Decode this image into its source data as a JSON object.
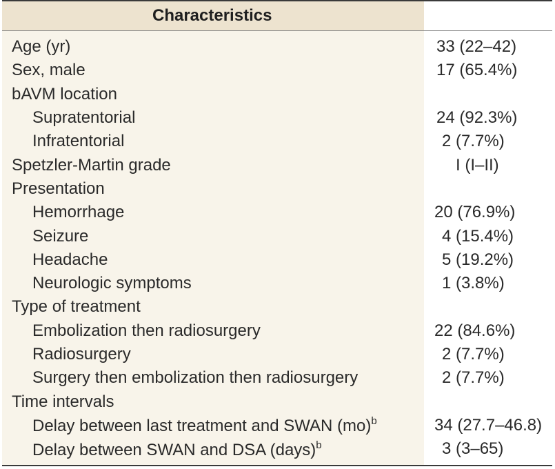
{
  "table": {
    "header": {
      "characteristics": "Characteristics",
      "value": ""
    },
    "rows": [
      {
        "label": "Age (yr)",
        "value": "33 (22–42)",
        "indent": false
      },
      {
        "label": "Sex, male",
        "value": "17 (65.4%)",
        "indent": false
      },
      {
        "label": "bAVM location",
        "value": "",
        "indent": false
      },
      {
        "label": "Supratentorial",
        "value": "24 (92.3%)",
        "indent": true
      },
      {
        "label": "Infratentorial",
        "value": "2 (7.7%)",
        "indent": true
      },
      {
        "label": "Spetzler-Martin grade",
        "value": "I (I–II)",
        "indent": false
      },
      {
        "label": "Presentation",
        "value": "",
        "indent": false
      },
      {
        "label": "Hemorrhage",
        "value": "20 (76.9%)",
        "indent": true
      },
      {
        "label": "Seizure",
        "value": "4 (15.4%)",
        "indent": true
      },
      {
        "label": "Headache",
        "value": "5 (19.2%)",
        "indent": true
      },
      {
        "label": "Neurologic symptoms",
        "value": "1 (3.8%)",
        "indent": true
      },
      {
        "label": "Type of treatment",
        "value": "",
        "indent": false
      },
      {
        "label": "Embolization then radiosurgery",
        "value": "22 (84.6%)",
        "indent": true
      },
      {
        "label": "Radiosurgery",
        "value": "2 (7.7%)",
        "indent": true
      },
      {
        "label": "Surgery then embolization then radiosurgery",
        "value": "2 (7.7%)",
        "indent": true
      },
      {
        "label": "Time intervals",
        "value": "",
        "indent": false
      },
      {
        "label": "Delay between last treatment and SWAN (mo)",
        "superscript": "b",
        "value": "34 (27.7–46.8)",
        "indent": true
      },
      {
        "label": "Delay between SWAN and DSA (days)",
        "superscript": "b",
        "value": "3 (3–65)",
        "indent": true
      }
    ]
  },
  "colors": {
    "label_column_background": "#f8f4ea",
    "header_background": "#ede3cf",
    "rule": "#3a3a3a",
    "text": "#2a2a2a"
  }
}
